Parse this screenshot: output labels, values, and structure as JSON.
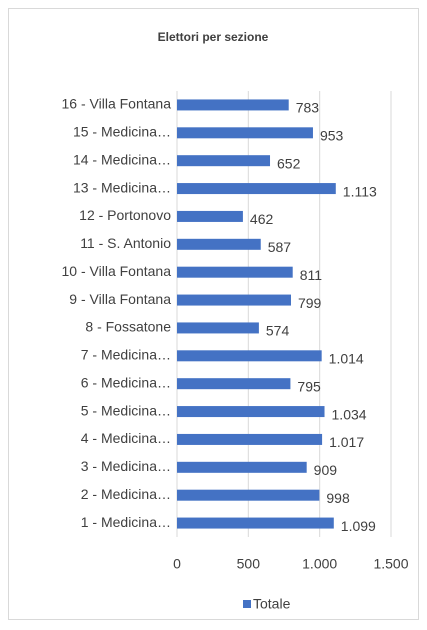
{
  "chart_data": {
    "type": "bar",
    "orientation": "horizontal",
    "title": "Elettori per sezione",
    "categories": [
      "1 - Medicina…",
      "2 - Medicina…",
      "3 - Medicina…",
      "4 - Medicina…",
      "5 - Medicina…",
      "6 - Medicina…",
      "7 - Medicina…",
      "8 - Fossatone",
      "9 - Villa Fontana",
      "10 - Villa Fontana",
      "11 - S. Antonio",
      "12 - Portonovo",
      "13 - Medicina…",
      "14 - Medicina…",
      "15 - Medicina…",
      "16 - Villa Fontana"
    ],
    "series": [
      {
        "name": "Totale",
        "color": "#4472c4",
        "values": [
          1099,
          998,
          909,
          1017,
          1034,
          795,
          1014,
          574,
          799,
          811,
          587,
          462,
          1113,
          652,
          953,
          783
        ],
        "value_labels": [
          "1.099",
          "998",
          "909",
          "1.017",
          "1.034",
          "795",
          "1.014",
          "574",
          "799",
          "811",
          "587",
          "462",
          "1.113",
          "652",
          "953",
          "783"
        ]
      }
    ],
    "xlim": [
      0,
      1500
    ],
    "xticks": [
      0,
      500,
      {
        "value": 1000,
        "label": "1.000"
      },
      {
        "value": 1500,
        "label": "1.500"
      }
    ],
    "grid": true,
    "legend": "bottom"
  }
}
